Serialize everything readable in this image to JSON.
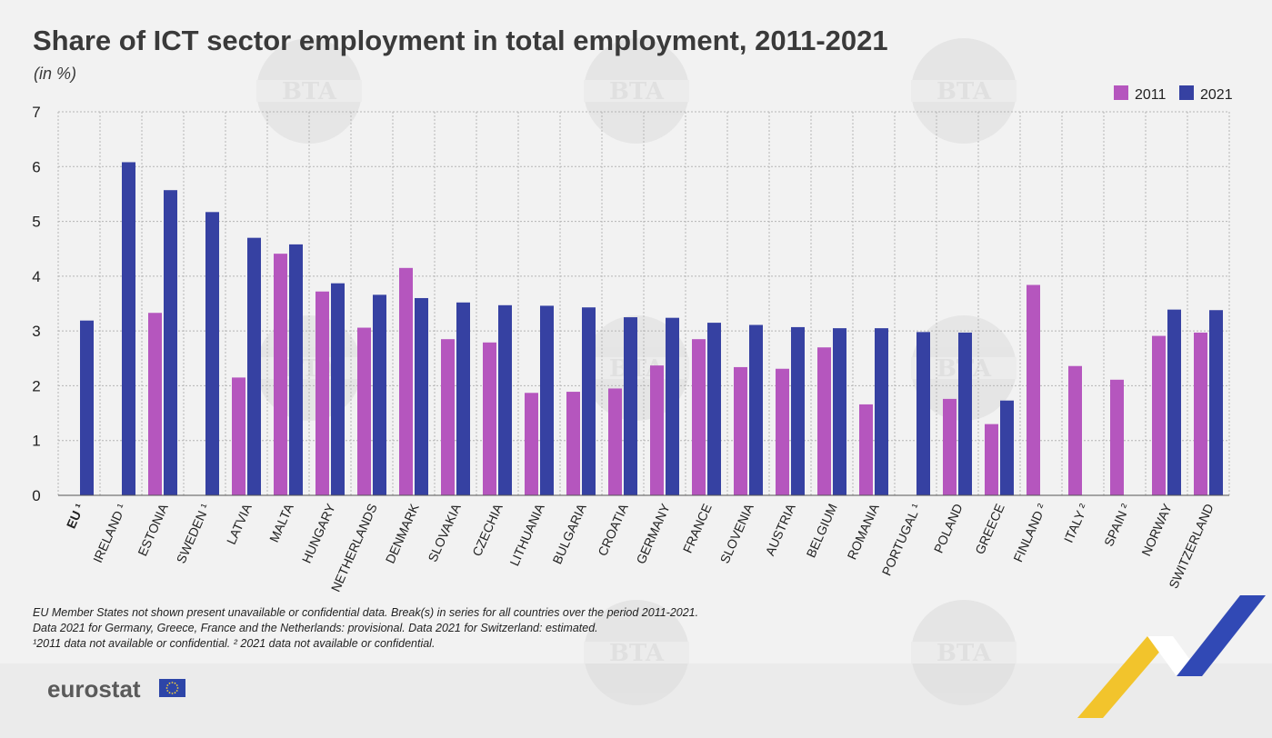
{
  "colors": {
    "s2011": "#b556be",
    "s2021": "#3641a2",
    "grid": "#b5b5b5",
    "background": "#f2f2f2",
    "footer_band": "#ebebeb",
    "eu_flag": "#2d45a8",
    "ribbon_yellow": "#f2c42c",
    "ribbon_blue": "#3149b5",
    "ribbon_white": "#ffffff"
  },
  "footer": {
    "notes": [
      "EU Member States not shown present unavailable or confidential data. Break(s) in series for all countries over the period 2011-2021.",
      "Data 2021 for Germany, Greece, France and the Netherlands: provisional. Data 2021 for Switzerland: estimated.",
      "¹2011 data not available or confidential. ² 2021 data not available or confidential."
    ],
    "brand": "eurostat",
    "brand_icon": "eu-flag-icon",
    "decoration": "eurostat-ribbon-icon"
  },
  "watermark": {
    "text": "BTA",
    "icon": "bta-watermark-icon"
  },
  "chart_data": {
    "type": "bar",
    "title": "Share of ICT sector employment in total employment, 2011-2021",
    "subtitle": "(in %)",
    "xlabel": "",
    "ylabel": "",
    "ylim": [
      0,
      7
    ],
    "yticks": [
      "0",
      "1",
      "2",
      "3",
      "4",
      "5",
      "6",
      "7"
    ],
    "grid": true,
    "legend_position": "top-right",
    "categories": [
      "EU ¹",
      "IRELAND ¹",
      "ESTONIA",
      "SWEDEN ¹",
      "LATVIA",
      "MALTA",
      "HUNGARY",
      "NETHERLANDS",
      "DENMARK",
      "SLOVAKIA",
      "CZECHIA",
      "LITHUANIA",
      "BULGARIA",
      "CROATIA",
      "GERMANY",
      "FRANCE",
      "SLOVENIA",
      "AUSTRIA",
      "BELGIUM",
      "ROMANIA",
      "PORTUGAL ¹",
      "POLAND",
      "GREECE",
      "FINLAND ²",
      "ITALY ²",
      "SPAIN ²",
      "NORWAY",
      "SWITZERLAND"
    ],
    "series": [
      {
        "name": "2011",
        "values": [
          null,
          null,
          3.33,
          null,
          2.15,
          4.41,
          3.72,
          3.06,
          4.15,
          2.85,
          2.79,
          1.87,
          1.89,
          1.95,
          2.37,
          2.85,
          2.34,
          2.31,
          2.7,
          1.66,
          null,
          1.76,
          1.3,
          3.84,
          2.36,
          2.11,
          2.91,
          2.97
        ]
      },
      {
        "name": "2021",
        "values": [
          3.19,
          6.08,
          5.57,
          5.17,
          4.7,
          4.58,
          3.87,
          3.66,
          3.6,
          3.52,
          3.47,
          3.46,
          3.43,
          3.25,
          3.24,
          3.15,
          3.11,
          3.07,
          3.05,
          3.05,
          2.98,
          2.97,
          1.73,
          null,
          null,
          null,
          3.39,
          3.38
        ]
      }
    ]
  }
}
